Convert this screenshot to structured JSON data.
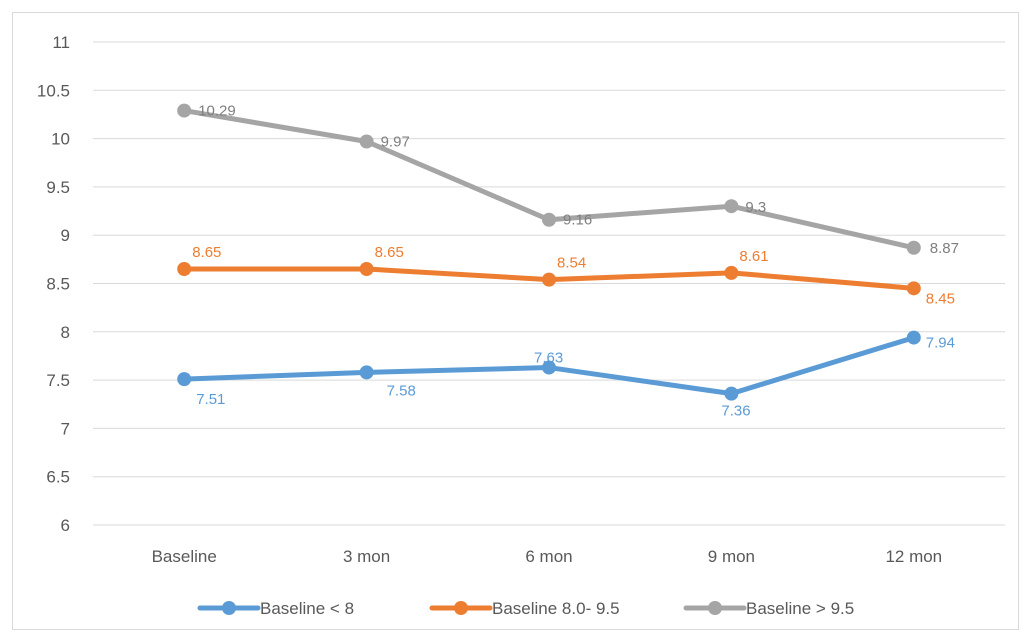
{
  "chart_data": {
    "type": "line",
    "title": "",
    "xlabel": "",
    "ylabel": "",
    "categories": [
      "Baseline",
      "3 mon",
      "6 mon",
      "9 mon",
      "12 mon"
    ],
    "ylim": [
      6,
      11
    ],
    "yticks": [
      6,
      6.5,
      7,
      7.5,
      8,
      8.5,
      9,
      9.5,
      10,
      10.5,
      11
    ],
    "grid": true,
    "legend_position": "bottom",
    "series": [
      {
        "name": "Baseline < 8",
        "color": "#5b9bd5",
        "values": [
          7.51,
          7.58,
          7.63,
          7.36,
          7.94
        ],
        "label_color": "#5b9bd5"
      },
      {
        "name": "Baseline 8.0- 9.5",
        "color": "#ed7d31",
        "values": [
          8.65,
          8.65,
          8.54,
          8.61,
          8.45
        ],
        "label_color": "#ed7d31"
      },
      {
        "name": "Baseline > 9.5",
        "color": "#a5a5a5",
        "values": [
          10.29,
          9.97,
          9.16,
          9.3,
          8.87
        ],
        "label_color": "#7f7f7f"
      }
    ]
  }
}
